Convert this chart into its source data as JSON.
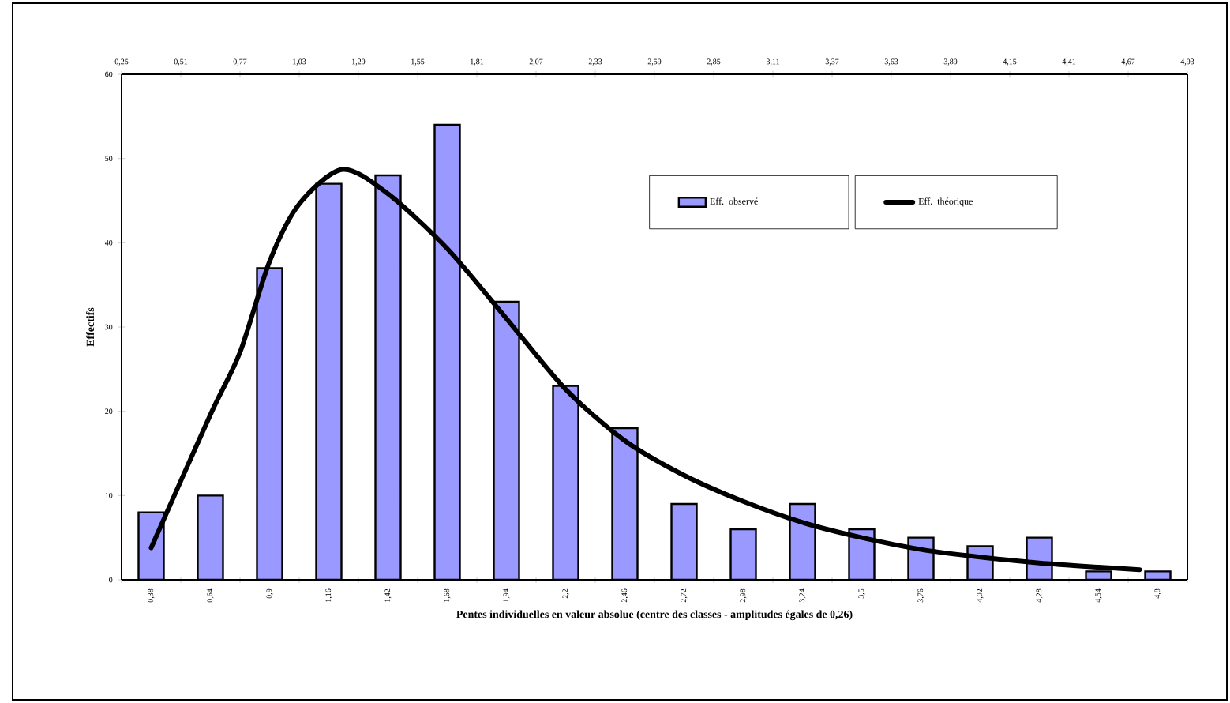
{
  "chart_data": {
    "type": "bar",
    "xlabel": "Pentes individuelles en valeur absolue (centre des classes - amplitudes égales de 0,26)",
    "ylabel": "Effectifs",
    "categories": [
      "0,38",
      "0,64",
      "0,9",
      "1,16",
      "1,42",
      "1,68",
      "1,94",
      "2,2",
      "2,46",
      "2,72",
      "2,98",
      "3,24",
      "3,5",
      "3,76",
      "4,02",
      "4,28",
      "4,54",
      "4,8"
    ],
    "series": [
      {
        "name": "Eff. observé",
        "color": "#9999ff",
        "values": [
          8,
          10,
          37,
          47,
          48,
          54,
          33,
          23,
          18,
          9,
          6,
          9,
          6,
          5,
          4,
          5,
          1,
          1
        ]
      },
      {
        "name": "Eff. théorique",
        "type": "line",
        "color": "#000000",
        "axis": "x2",
        "x": [
          0.38,
          0.64,
          0.77,
          0.9,
          1.03,
          1.22,
          1.42,
          1.68,
          1.94,
          2.2,
          2.46,
          2.72,
          2.98,
          3.24,
          3.5,
          3.76,
          4.02,
          4.28,
          4.54,
          4.72
        ],
        "values": [
          3.8,
          19.6,
          27,
          37.8,
          44.6,
          48.7,
          45.8,
          39.3,
          31,
          22.6,
          16.5,
          12.4,
          9.3,
          6.8,
          5.0,
          3.6,
          2.7,
          2.0,
          1.5,
          1.2
        ]
      }
    ],
    "ylim": [
      0,
      60
    ],
    "yticks": [
      0,
      10,
      20,
      30,
      40,
      50,
      60
    ],
    "x2lim": [
      0.25,
      4.93
    ],
    "x2ticks": [
      {
        "value": 0.25,
        "label": "0,25"
      },
      {
        "value": 0.51,
        "label": "0,51"
      },
      {
        "value": 0.77,
        "label": "0,77"
      },
      {
        "value": 1.03,
        "label": "1,03"
      },
      {
        "value": 1.29,
        "label": "1,29"
      },
      {
        "value": 1.55,
        "label": "1,55"
      },
      {
        "value": 1.81,
        "label": "1,81"
      },
      {
        "value": 2.07,
        "label": "2,07"
      },
      {
        "value": 2.33,
        "label": "2,33"
      },
      {
        "value": 2.59,
        "label": "2,59"
      },
      {
        "value": 2.85,
        "label": "2,85"
      },
      {
        "value": 3.11,
        "label": "3,11"
      },
      {
        "value": 3.37,
        "label": "3,37"
      },
      {
        "value": 3.63,
        "label": "3,63"
      },
      {
        "value": 3.89,
        "label": "3,89"
      },
      {
        "value": 4.15,
        "label": "4,15"
      },
      {
        "value": 4.41,
        "label": "4,41"
      },
      {
        "value": 4.67,
        "label": "4,67"
      },
      {
        "value": 4.93,
        "label": "4,93"
      }
    ],
    "legend": "top right"
  }
}
